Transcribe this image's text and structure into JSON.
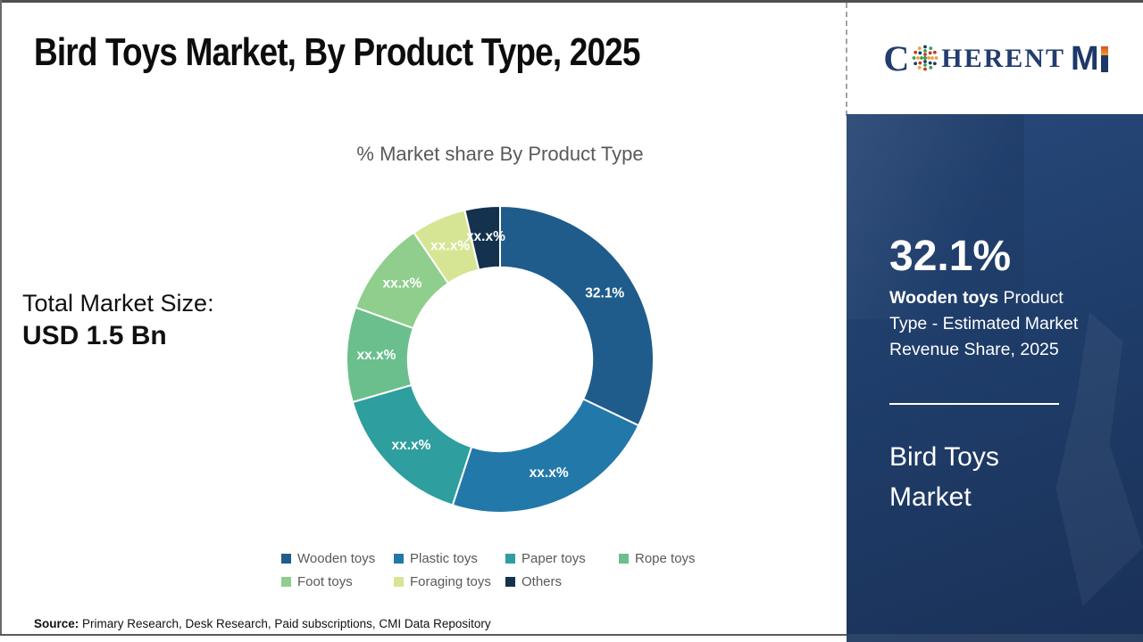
{
  "page": {
    "title": "Bird Toys Market, By Product Type, 2025",
    "source_label": "Source:",
    "source_text": " Primary Research, Desk Research, Paid subscriptions, CMI Data Repository"
  },
  "left_panel": {
    "market_size_label": "Total Market Size:",
    "market_size_value": "USD 1.5 Bn"
  },
  "chart_data": {
    "type": "pie",
    "subtype": "donut",
    "title": "% Market share By Product Type",
    "categories": [
      "Wooden toys",
      "Plastic toys",
      "Paper toys",
      "Rope toys",
      "Foot toys",
      "Foraging toys",
      "Others"
    ],
    "values": [
      32.1,
      22.9,
      15.5,
      10.0,
      10.0,
      5.8,
      3.7
    ],
    "data_labels": [
      "32.1%",
      "xx.x%",
      "xx.x%",
      "xx.x%",
      "xx.x%",
      "xx.x%",
      "xx.x%"
    ],
    "colors": [
      "#1F5C8B",
      "#2279A9",
      "#2E9E9E",
      "#6BBF8C",
      "#8FCE8D",
      "#D5E593",
      "#14314D"
    ],
    "direction": "clockwise",
    "rotation_start_deg": 0,
    "inner_radius_ratio": 0.6,
    "legend_position": "bottom",
    "label_color": "#ffffff"
  },
  "sidebar": {
    "logo": {
      "brand": "CoherentMI",
      "prefix": "C",
      "mid": "HERENT",
      "m": "M"
    },
    "stat_value": "32.1%",
    "stat_bold": "Wooden toys",
    "stat_rest": " Product Type - Estimated Market Revenue Share, 2025",
    "panel_title": "Bird Toys Market",
    "bg_color": "#1F3D6A"
  }
}
